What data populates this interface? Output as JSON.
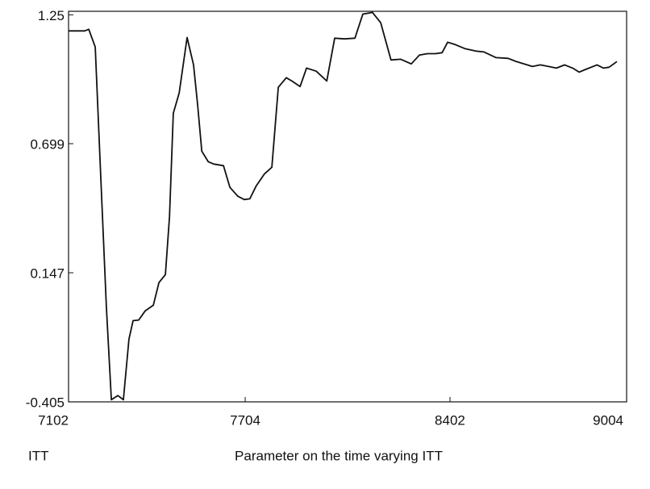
{
  "chart_data": {
    "type": "line",
    "xlabel": "Parameter on the time varying ITT",
    "ylabel": "ITT",
    "x": [
      7102,
      7157,
      7171,
      7193,
      7212,
      7231,
      7248,
      7270,
      7289,
      7308,
      7322,
      7341,
      7363,
      7391,
      7410,
      7432,
      7446,
      7459,
      7479,
      7506,
      7528,
      7542,
      7556,
      7578,
      7597,
      7630,
      7652,
      7679,
      7701,
      7720,
      7742,
      7770,
      7795,
      7817,
      7844,
      7863,
      7891,
      7913,
      7946,
      7982,
      8009,
      8042,
      8078,
      8105,
      8138,
      8166,
      8201,
      8234,
      8270,
      8298,
      8325,
      8353,
      8375,
      8394,
      8421,
      8454,
      8490,
      8518,
      8559,
      8600,
      8628,
      8655,
      8683,
      8710,
      8738,
      8765,
      8793,
      8820,
      8842,
      8861,
      8903,
      8925,
      8944,
      8971
    ],
    "series": [
      {
        "color": "#111111",
        "values": [
          1.181,
          1.181,
          1.188,
          1.112,
          0.553,
          0.001,
          -0.396,
          -0.378,
          -0.396,
          -0.137,
          -0.058,
          -0.055,
          -0.016,
          0.008,
          0.105,
          0.139,
          0.388,
          0.829,
          0.916,
          1.153,
          1.036,
          0.864,
          0.667,
          0.622,
          0.612,
          0.605,
          0.512,
          0.474,
          0.46,
          0.463,
          0.519,
          0.57,
          0.598,
          0.94,
          0.981,
          0.967,
          0.943,
          1.022,
          1.009,
          0.967,
          1.15,
          1.147,
          1.15,
          1.253,
          1.26,
          1.216,
          1.057,
          1.06,
          1.04,
          1.078,
          1.084,
          1.084,
          1.088,
          1.133,
          1.122,
          1.105,
          1.095,
          1.091,
          1.067,
          1.064,
          1.05,
          1.04,
          1.029,
          1.036,
          1.029,
          1.022,
          1.036,
          1.022,
          1.005,
          1.015,
          1.036,
          1.022,
          1.026,
          1.05
        ]
      }
    ],
    "xlim": [
      7102,
      9004
    ],
    "ylim": [
      -0.405,
      1.265
    ],
    "xticks": [
      7102,
      7704,
      8402,
      9004
    ],
    "yticks": [
      1.25,
      0.699,
      0.147,
      -0.405
    ]
  }
}
